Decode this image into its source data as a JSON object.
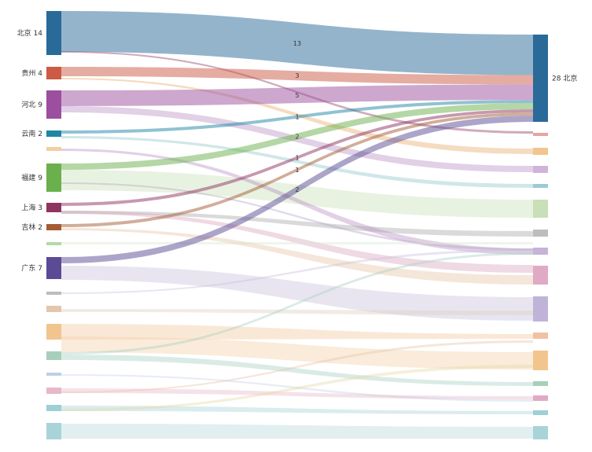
{
  "chart_data": {
    "type": "sankey",
    "title": "",
    "sources": [
      {
        "label": "北京",
        "value": 14,
        "color": "#2a6a98"
      },
      {
        "label": "贵州",
        "value": 4,
        "color": "#cc5a45"
      },
      {
        "label": "河北",
        "value": 9,
        "color": "#9b4f9e"
      },
      {
        "label": "云南",
        "value": 2,
        "color": "#1f86a6"
      },
      {
        "label": "福建",
        "value": 9,
        "color": "#6ab04c"
      },
      {
        "label": "上海",
        "value": 3,
        "color": "#8e3460"
      },
      {
        "label": "吉林",
        "value": 2,
        "color": "#a35c35"
      },
      {
        "label": "广东",
        "value": 7,
        "color": "#5a4b94"
      }
    ],
    "target": {
      "label": "北京",
      "value": 28,
      "color": "#2a6a98"
    },
    "flows": [
      {
        "source": "北京",
        "target": "北京",
        "value": 13
      },
      {
        "source": "贵州",
        "target": "北京",
        "value": 3
      },
      {
        "source": "河北",
        "target": "北京",
        "value": 5
      },
      {
        "source": "云南",
        "target": "北京",
        "value": 1
      },
      {
        "source": "福建",
        "target": "北京",
        "value": 2
      },
      {
        "source": "上海",
        "target": "北京",
        "value": 1
      },
      {
        "source": "吉林",
        "target": "北京",
        "value": 1
      },
      {
        "source": "广东",
        "target": "北京",
        "value": 2
      }
    ]
  }
}
